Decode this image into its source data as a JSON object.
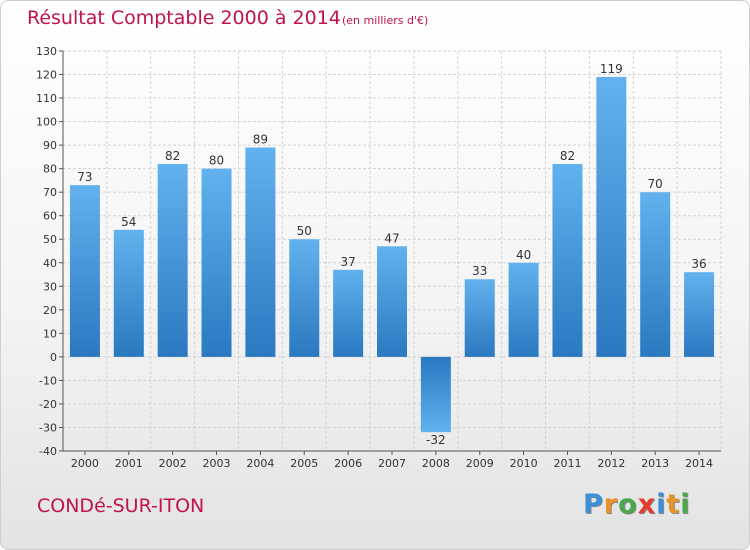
{
  "chart_data": {
    "type": "bar",
    "title": "Résultat Comptable 2000 à 2014",
    "subtitle": "(en milliers d'€)",
    "categories": [
      "2000",
      "2001",
      "2002",
      "2003",
      "2004",
      "2005",
      "2006",
      "2007",
      "2008",
      "2009",
      "2010",
      "2011",
      "2012",
      "2013",
      "2014"
    ],
    "values": [
      73,
      54,
      82,
      80,
      89,
      50,
      37,
      47,
      -32,
      33,
      40,
      82,
      119,
      70,
      36
    ],
    "ylim": [
      -40,
      130
    ],
    "ytick_step": 10,
    "grid": true,
    "bar_color": "#3a8fd6",
    "title_color": "#c1134a"
  },
  "footer": {
    "commune": "CONDé-SUR-ITON",
    "logo": [
      "P",
      "r",
      "o",
      "x",
      "i",
      "t",
      "i"
    ],
    "logo_colors": [
      "#3a8fd6",
      "#e8932a",
      "#4aa84a",
      "#e33b2e",
      "#3a8fd6",
      "#e8932a",
      "#4aa84a"
    ]
  }
}
